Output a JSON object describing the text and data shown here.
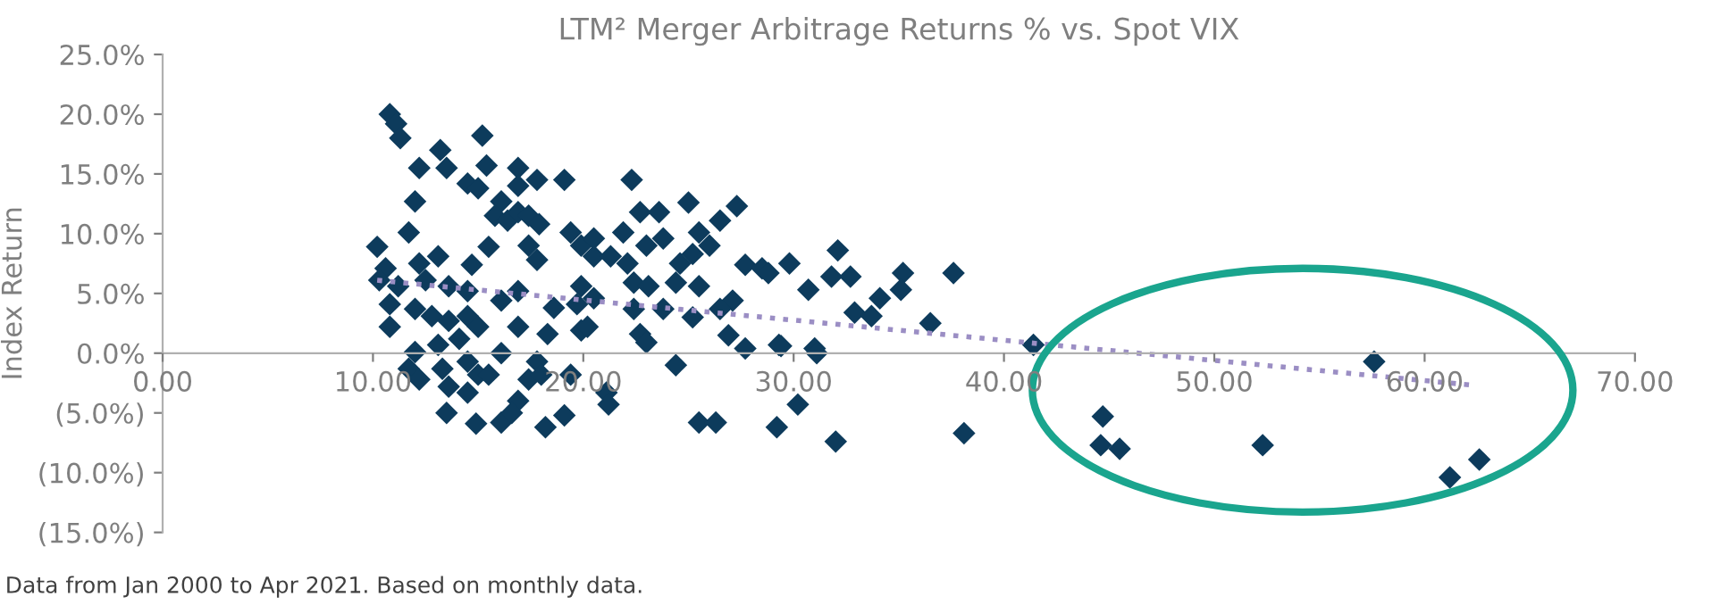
{
  "chart_data": {
    "type": "scatter",
    "title": "LTM² Merger Arbitrage Returns % vs. Spot VIX",
    "ylabel": "Index Return",
    "annotations": [
      "Data from Jan 2000 to Apr 2021. Based on monthly data."
    ],
    "xlim": [
      0,
      70
    ],
    "ylim": [
      -15,
      25
    ],
    "xticks": [
      {
        "value": 0,
        "label": "0.00"
      },
      {
        "value": 10,
        "label": "10.00"
      },
      {
        "value": 20,
        "label": "20.00"
      },
      {
        "value": 30,
        "label": "30.00"
      },
      {
        "value": 40,
        "label": "40.00"
      },
      {
        "value": 50,
        "label": "50.00"
      },
      {
        "value": 60,
        "label": "60.00"
      },
      {
        "value": 70,
        "label": "70.00"
      }
    ],
    "yticks": [
      {
        "value": -15,
        "label": "(15.0%)"
      },
      {
        "value": -10,
        "label": "(10.0%)"
      },
      {
        "value": -5,
        "label": "(5.0%)"
      },
      {
        "value": 0,
        "label": "0.0%"
      },
      {
        "value": 5,
        "label": "5.0%"
      },
      {
        "value": 10,
        "label": "10.0%"
      },
      {
        "value": 15,
        "label": "15.0%"
      },
      {
        "value": 20,
        "label": "20.0%"
      },
      {
        "value": 25,
        "label": "25.0%"
      }
    ],
    "grid": false,
    "legend": false,
    "marker": "diamond",
    "series": [
      {
        "color": "#0d3b5c",
        "x": [
          10.8,
          11.1,
          11.3,
          15.2,
          13.2,
          13.5,
          12.2,
          15.4,
          16.9,
          19.1,
          14.5,
          17.8,
          16.9,
          15.0,
          12.0,
          16.1,
          15.8,
          16.4,
          16.9,
          17.4,
          17.9,
          11.7,
          15.5,
          17.4,
          17.8,
          19.4,
          19.9,
          20.5,
          10.2,
          10.6,
          12.2,
          13.1,
          14.7,
          10.3,
          11.2,
          12.5,
          13.6,
          14.5,
          16.1,
          16.9,
          18.6,
          19.7,
          20.5,
          10.8,
          10.8,
          12.0,
          12.8,
          13.6,
          14.5,
          15.0,
          16.9,
          18.3,
          19.9,
          12.0,
          13.1,
          14.1,
          11.7,
          12.2,
          13.3,
          14.5,
          15.0,
          16.1,
          15.5,
          13.6,
          14.5,
          17.8,
          17.4,
          18.0,
          13.5,
          14.9,
          16.1,
          16.9,
          16.6,
          18.2,
          19.1,
          19.4,
          21.1,
          22.3,
          22.7,
          23.6,
          25.0,
          27.3,
          26.5,
          20.5,
          21.9,
          23.0,
          23.8,
          25.5,
          26.0,
          21.3,
          22.1,
          24.6,
          25.2,
          27.7,
          28.5,
          29.8,
          19.9,
          22.4,
          23.1,
          24.4,
          25.5,
          27.1,
          26.5,
          22.4,
          23.8,
          25.2,
          22.7,
          23.0,
          20.2,
          26.9,
          27.7,
          29.3,
          24.4,
          21.2,
          25.5,
          26.3,
          29.2,
          30.2,
          28.8,
          32.1,
          30.7,
          31.8,
          32.7,
          35.2,
          35.1,
          34.1,
          32.9,
          33.7,
          37.6,
          36.5,
          29.4,
          31.0,
          31.1,
          41.4,
          32.0,
          38.1,
          44.7,
          44.6,
          45.5,
          52.3,
          57.6,
          61.2,
          62.6
        ],
        "values": [
          20.0,
          19.2,
          18.0,
          18.2,
          17.0,
          15.5,
          15.5,
          15.7,
          15.5,
          14.5,
          14.2,
          14.5,
          14.0,
          13.8,
          12.7,
          12.7,
          11.5,
          11.1,
          11.8,
          11.5,
          10.8,
          10.1,
          8.9,
          9.0,
          7.8,
          10.1,
          9.0,
          8.1,
          8.9,
          7.1,
          7.5,
          8.1,
          7.4,
          6.1,
          5.6,
          6.1,
          5.6,
          5.2,
          4.4,
          5.2,
          3.8,
          4.1,
          4.6,
          4.1,
          2.2,
          3.7,
          3.1,
          2.7,
          3.1,
          2.2,
          2.2,
          1.6,
          1.9,
          0.1,
          0.7,
          1.2,
          -1.3,
          -2.2,
          -1.3,
          -0.7,
          -1.8,
          0.0,
          -1.8,
          -2.8,
          -3.3,
          -0.7,
          -2.2,
          -1.8,
          -5.0,
          -5.9,
          -5.8,
          -4.0,
          -5.0,
          -6.2,
          -5.2,
          -1.8,
          -3.3,
          14.5,
          11.8,
          11.8,
          12.6,
          12.3,
          11.1,
          9.6,
          10.1,
          9.0,
          9.6,
          10.1,
          9.0,
          8.1,
          7.5,
          7.5,
          8.3,
          7.4,
          7.1,
          7.5,
          5.6,
          5.9,
          5.6,
          5.9,
          5.6,
          4.4,
          3.7,
          3.7,
          3.7,
          3.0,
          1.6,
          0.9,
          2.2,
          1.5,
          0.4,
          0.7,
          -1.0,
          -4.3,
          -5.8,
          -5.8,
          -6.2,
          -4.3,
          6.7,
          8.6,
          5.3,
          6.4,
          6.4,
          6.7,
          5.3,
          4.6,
          3.4,
          3.1,
          6.7,
          2.5,
          0.6,
          0.4,
          0.0,
          0.7,
          -7.4,
          -6.7,
          -5.3,
          -7.7,
          -8.0,
          -7.7,
          -0.7,
          -10.4,
          -8.9
        ]
      },
      {
        "type": "line",
        "color": "#9b8ec4",
        "line_style": "dotted",
        "marker": "none",
        "x": [
          10.2,
          62.4
        ],
        "values": [
          6.1,
          -2.7
        ]
      }
    ]
  }
}
